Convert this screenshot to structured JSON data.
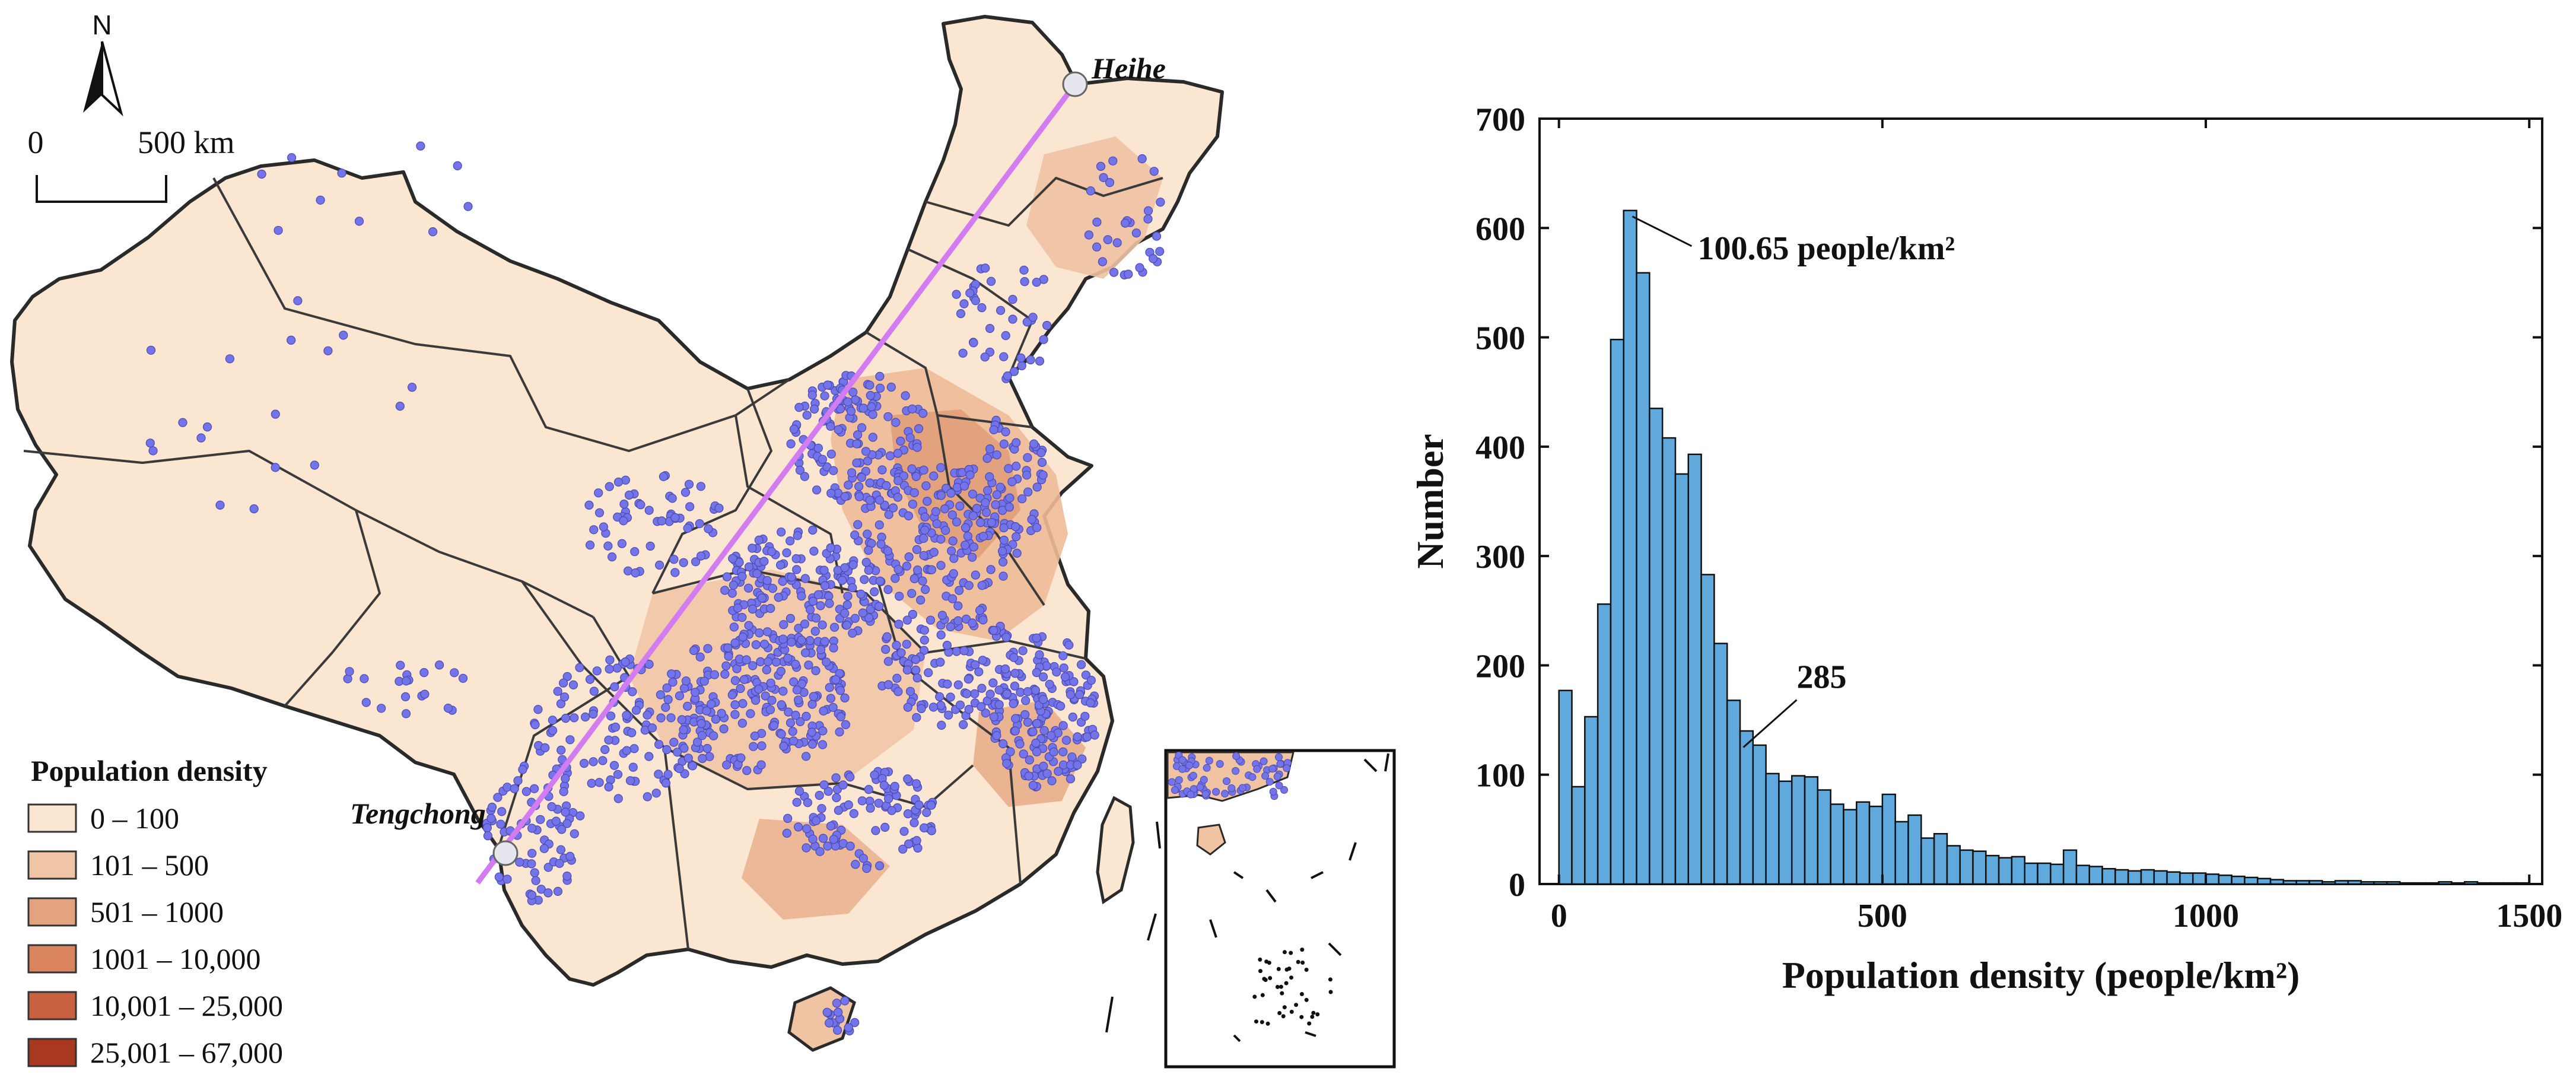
{
  "map": {
    "north_label": "N",
    "scale_start": "0",
    "scale_end": "500 km",
    "legend_title": "Population density",
    "legend_items": [
      {
        "label": "0 – 100",
        "color": "#fbe6d2"
      },
      {
        "label": "101 – 500",
        "color": "#f0c4a6"
      },
      {
        "label": "501 – 1000",
        "color": "#e4a37f"
      },
      {
        "label": "1001 – 10,000",
        "color": "#d9835f"
      },
      {
        "label": "10,001 – 25,000",
        "color": "#c9603f"
      },
      {
        "label": "25,001 – 67,000",
        "color": "#a8391f"
      }
    ],
    "city_top": "Heihe",
    "city_bottom": "Tengchong",
    "line_color": "#d37bf0",
    "point_color": "#7373ea",
    "boundary_color": "#2a2a2a"
  },
  "chart_data": {
    "type": "bar",
    "xlabel": "Population density (people/km²)",
    "ylabel": "Number",
    "xlim": [
      -30,
      1520
    ],
    "ylim": [
      0,
      700
    ],
    "xticks": [
      0,
      500,
      1000,
      1500
    ],
    "yticks": [
      0,
      100,
      200,
      300,
      400,
      500,
      600,
      700
    ],
    "bin_width": 20,
    "bin_starts": [
      0,
      20,
      40,
      60,
      80,
      100,
      120,
      140,
      160,
      180,
      200,
      220,
      240,
      260,
      280,
      300,
      320,
      340,
      360,
      380,
      400,
      420,
      440,
      460,
      480,
      500,
      520,
      540,
      560,
      580,
      600,
      620,
      640,
      660,
      680,
      700,
      720,
      740,
      760,
      780,
      800,
      820,
      840,
      860,
      880,
      900,
      920,
      940,
      960,
      980,
      1000,
      1020,
      1040,
      1060,
      1080,
      1100,
      1120,
      1140,
      1160,
      1180,
      1200,
      1220,
      1240,
      1260,
      1280,
      1300,
      1320,
      1340,
      1360,
      1380,
      1400,
      1420,
      1440,
      1460,
      1480
    ],
    "values": [
      177,
      89,
      153,
      256,
      498,
      616,
      559,
      435,
      408,
      375,
      393,
      283,
      220,
      168,
      140,
      127,
      101,
      94,
      99,
      98,
      86,
      73,
      68,
      75,
      71,
      82,
      57,
      63,
      42,
      46,
      35,
      31,
      30,
      26,
      24,
      25,
      19,
      19,
      18,
      31,
      17,
      16,
      14,
      13,
      12,
      13,
      12,
      11,
      10,
      10,
      9,
      8,
      7,
      6,
      5,
      4,
      3,
      3,
      3,
      2,
      3,
      3,
      2,
      2,
      2,
      1,
      1,
      1,
      2,
      1,
      2,
      1,
      1,
      1,
      1
    ],
    "bar_color": "#5fa9dd",
    "annotations": [
      {
        "text": "100.65 people/km²",
        "x": 100.65,
        "y": 616
      },
      {
        "text": "285",
        "x": 285,
        "y": 125
      }
    ]
  }
}
